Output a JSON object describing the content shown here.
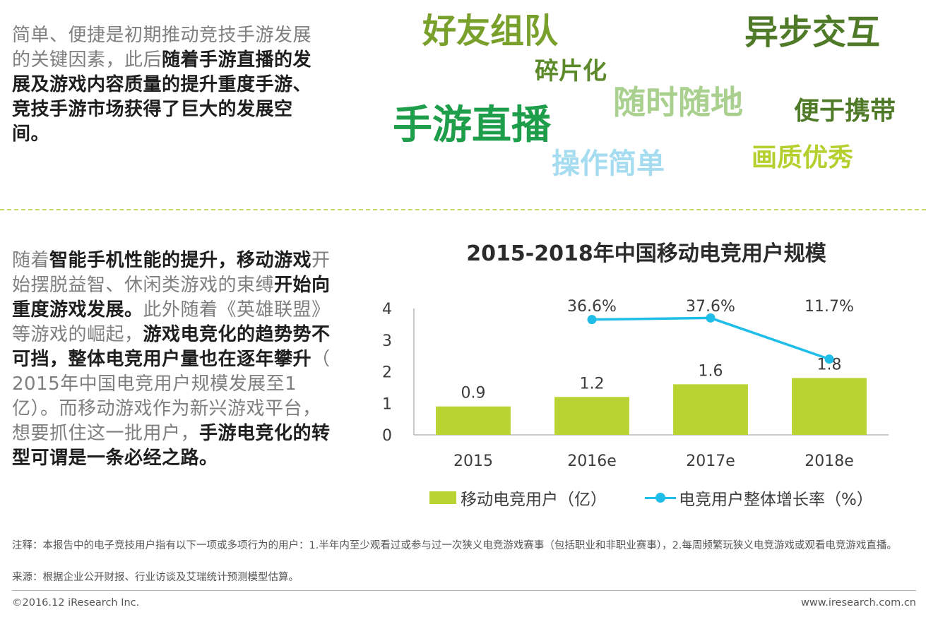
{
  "top_paragraph": {
    "normal": "简单、便捷是初期推动竞技手游发展的关键因素，此后",
    "bold": "随着手游直播的发展及游戏内容质量的提升重度手游、竞技手游市场获得了巨大的发展空间。"
  },
  "word_cloud": [
    {
      "text": "好友组队",
      "color": "#7aa02c"
    },
    {
      "text": "异步交互",
      "color": "#4f7a28"
    },
    {
      "text": "碎片化",
      "color": "#5c8a2a"
    },
    {
      "text": "随时随地",
      "color": "#a9d08e"
    },
    {
      "text": "便于携带",
      "color": "#4f7a28"
    },
    {
      "text": "手游直播",
      "color": "#1e9e4a"
    },
    {
      "text": "操作简单",
      "color": "#a6dcef"
    },
    {
      "text": "画质优秀",
      "color": "#b5cf2e"
    }
  ],
  "bottom_paragraph": {
    "p1": "随着",
    "b1": "智能手机性能的提升，移动游戏",
    "p2": "开始摆脱益智、休闲类游戏的束缚",
    "b2": "开始向重度游戏发展。",
    "p3": "此外随着《英雄联盟》等游戏的崛起，",
    "b3": "游戏电竞化的趋势势不可挡，整体电竞用户量也在逐年攀升",
    "p4": "（ 2015年中国电竞用户规模发展至1亿）。而移动游戏作为新兴游戏平台，想要抓住这一批用户，",
    "b4": "手游电竞化的转型可谓是一条必经之路。"
  },
  "chart_data": {
    "type": "bar",
    "title": "2015-2018年中国移动电竞用户规模",
    "categories": [
      "2015",
      "2016e",
      "2017e",
      "2018e"
    ],
    "series": [
      {
        "name": "移动电竞用户（亿）",
        "type": "bar",
        "values": [
          0.9,
          1.2,
          1.6,
          1.8
        ],
        "labels": [
          "0.9",
          "1.2",
          "1.6",
          "1.8"
        ],
        "color": "#b9d333"
      },
      {
        "name": "电竞用户整体增长率（%）",
        "type": "line",
        "values": [
          null,
          36.6,
          37.6,
          11.7
        ],
        "labels": [
          "",
          "36.6%",
          "37.6%",
          "11.7%"
        ],
        "color": "#1fbde8"
      }
    ],
    "y_ticks": [
      "4",
      "3",
      "2",
      "1",
      "0"
    ],
    "ylim": [
      0,
      4
    ],
    "grid": false,
    "legend_position": "bottom"
  },
  "legend": {
    "bar_label": "移动电竞用户（亿）",
    "line_label": "电竞用户整体增长率（%）"
  },
  "footer": {
    "note": "注释：本报告中的电子竞技用户指有以下一项或多项行为的用户：1.半年内至少观看过或参与过一次狭义电竞游戏赛事（包括职业和非职业赛事），2.每周频繁玩狭义电竞游戏或观看电竞游戏直播。",
    "source": "来源：根据企业公开财报、行业访谈及艾瑞统计预测模型估算。",
    "copyright": "©2016.12 iResearch Inc.",
    "website": "www.iresearch.com.cn"
  }
}
